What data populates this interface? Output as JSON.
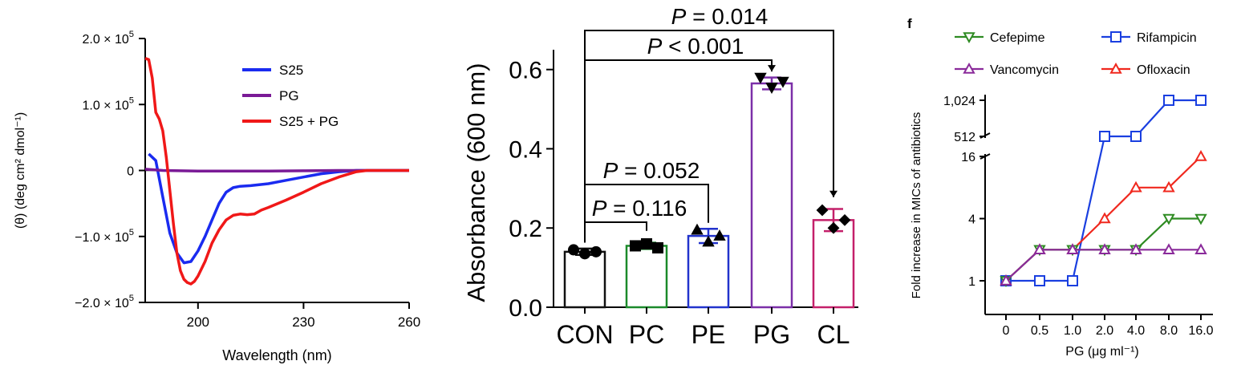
{
  "chart_data": [
    {
      "type": "line",
      "ylabel": "(θ) (deg cm² dmol⁻¹)",
      "xlabel": "Wavelength (nm)",
      "x_ticks": [
        "200",
        "230",
        "260"
      ],
      "y_ticks": [
        "2.0 × 10⁵",
        "1.0 × 10⁵",
        "0",
        "−1.0 × 10⁵",
        "−2.0 × 10⁵"
      ],
      "xlim": [
        185,
        260
      ],
      "ylim": [
        -200000,
        200000
      ],
      "legend_position": "top-right",
      "series": [
        {
          "name": "S25",
          "color": "#1a2bf0",
          "x": [
            186,
            188,
            190,
            192,
            194,
            196,
            198,
            200,
            202,
            204,
            206,
            208,
            210,
            212,
            215,
            220,
            225,
            230,
            235,
            240,
            245,
            250,
            255,
            260
          ],
          "y": [
            25000,
            15000,
            -40000,
            -95000,
            -125000,
            -140000,
            -138000,
            -122000,
            -100000,
            -75000,
            -50000,
            -33000,
            -26000,
            -24000,
            -23000,
            -20000,
            -15000,
            -10000,
            -5000,
            -2000,
            0,
            0,
            0,
            0
          ]
        },
        {
          "name": "PG",
          "color": "#7a1a96",
          "x": [
            185,
            190,
            200,
            210,
            220,
            230,
            240,
            250,
            260
          ],
          "y": [
            2000,
            0,
            -1000,
            -1000,
            -1000,
            -500,
            0,
            0,
            0
          ]
        },
        {
          "name": "S25 + PG",
          "color": "#f01818",
          "x": [
            185,
            186,
            187,
            188,
            189,
            190,
            191,
            192,
            193,
            194,
            195,
            196,
            197,
            198,
            199,
            200,
            202,
            204,
            206,
            208,
            210,
            212,
            214,
            216,
            218,
            220,
            225,
            230,
            235,
            240,
            245,
            248,
            250,
            255,
            260
          ],
          "y": [
            170000,
            168000,
            140000,
            88000,
            78000,
            60000,
            20000,
            -30000,
            -80000,
            -125000,
            -152000,
            -165000,
            -170000,
            -172000,
            -168000,
            -160000,
            -138000,
            -110000,
            -90000,
            -75000,
            -68000,
            -66000,
            -67000,
            -66000,
            -60000,
            -56000,
            -45000,
            -33000,
            -20000,
            -10000,
            -2000,
            0,
            0,
            0,
            0
          ]
        }
      ]
    },
    {
      "type": "bar",
      "ylabel": "Absorbance (600 nm)",
      "categories": [
        "CON",
        "PC",
        "PE",
        "PG",
        "CL"
      ],
      "values": [
        0.14,
        0.155,
        0.18,
        0.565,
        0.22
      ],
      "errors": [
        0.008,
        0.008,
        0.018,
        0.015,
        0.028
      ],
      "colors": [
        "#111111",
        "#1b8a2a",
        "#2233cc",
        "#7b2fa8",
        "#c4206a"
      ],
      "points": [
        [
          0.145,
          0.135,
          0.14
        ],
        [
          0.155,
          0.16,
          0.15
        ],
        [
          0.195,
          0.165,
          0.18
        ],
        [
          0.58,
          0.555,
          0.57
        ],
        [
          0.245,
          0.2,
          0.22
        ]
      ],
      "markers": [
        "circle",
        "square",
        "triangle-up",
        "triangle-down",
        "diamond"
      ],
      "ylim": [
        0,
        0.65
      ],
      "y_ticks": [
        "0.0",
        "0.2",
        "0.4",
        "0.6"
      ],
      "comparisons": [
        {
          "from": 0,
          "to": 4,
          "p_label": "P",
          "p_value": "= 0.014"
        },
        {
          "from": 0,
          "to": 3,
          "p_label": "P",
          "p_value": "< 0.001"
        },
        {
          "from": 0,
          "to": 2,
          "p_label": "P",
          "p_value": "= 0.052"
        },
        {
          "from": 0,
          "to": 1,
          "p_label": "P",
          "p_value": "= 0.116"
        }
      ]
    },
    {
      "type": "line",
      "panel_label": "f",
      "xlabel": "PG (μg ml⁻¹)",
      "ylabel": "Fold increase in MICs of antibiotics",
      "categories": [
        "0",
        "0.5",
        "1.0",
        "2.0",
        "4.0",
        "8.0",
        "16.0"
      ],
      "y_ticks_lower": [
        "1",
        "4",
        "16"
      ],
      "y_ticks_upper": [
        "512",
        "1,024"
      ],
      "y_axis_break": true,
      "legend_position": "top",
      "series": [
        {
          "name": "Cefepime",
          "color": "#2e8b22",
          "marker": "triangle-down",
          "values": [
            1,
            2,
            2,
            2,
            2,
            4,
            4
          ]
        },
        {
          "name": "Rifampicin",
          "color": "#1a3fe0",
          "marker": "square",
          "values": [
            1,
            1,
            1,
            512,
            512,
            1024,
            1024
          ]
        },
        {
          "name": "Vancomycin",
          "color": "#8a2a9a",
          "marker": "triangle-up",
          "values": [
            1,
            2,
            2,
            2,
            2,
            2,
            2
          ]
        },
        {
          "name": "Ofloxacin",
          "color": "#f0281e",
          "marker": "triangle-up",
          "values": [
            1,
            2,
            2,
            4,
            8,
            8,
            16
          ]
        }
      ]
    }
  ]
}
